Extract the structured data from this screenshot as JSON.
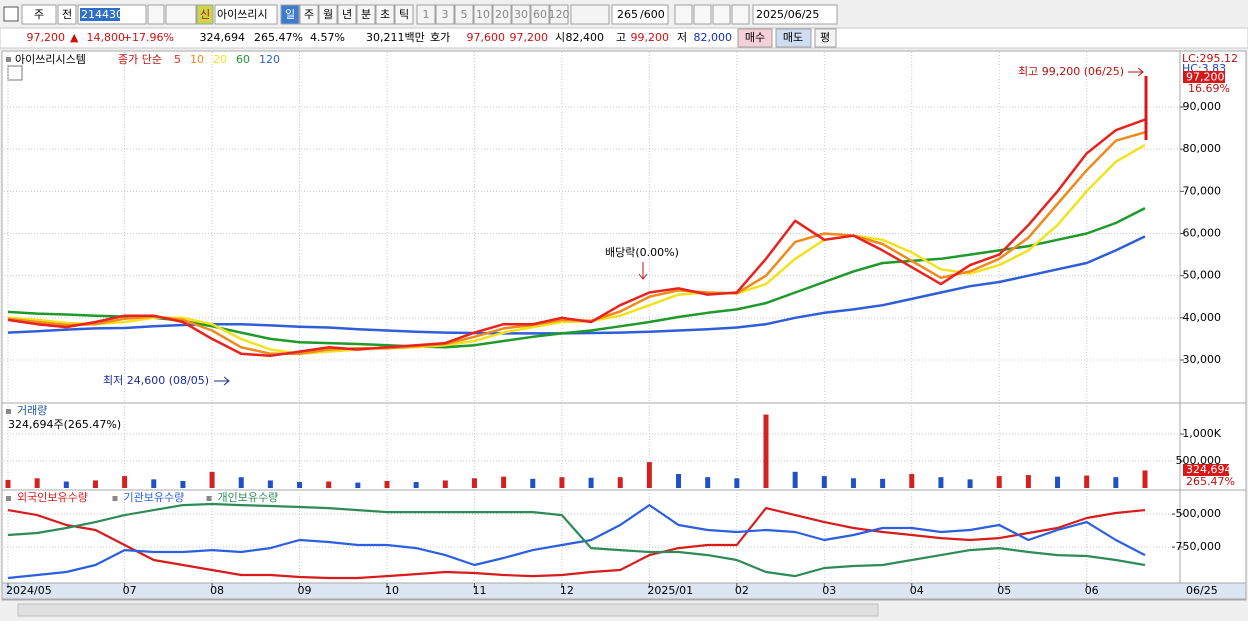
{
  "toolbar": {
    "market": "주",
    "prev": "전",
    "code": "214430",
    "new_badge": "신",
    "name": "아이쓰리시",
    "periods": [
      "일",
      "주",
      "월",
      "년",
      "분",
      "초",
      "틱"
    ],
    "intervals": [
      "1",
      "3",
      "5",
      "10",
      "20",
      "30",
      "60",
      "120"
    ],
    "count": "265",
    "count_max": "/600",
    "date": "2025/06/25"
  },
  "info_bar": {
    "price": "97,200",
    "arrow": "▲",
    "change": "14,800",
    "change_rate": "+17.96%",
    "volume": "324,694",
    "volume_rate": "265.47%",
    "turnover": "4.57%",
    "amount": "30,211백만",
    "quote_label": "호가",
    "ask": "97,600",
    "bid": "97,200",
    "open_label": "시",
    "open": "82,400",
    "high_label": "고",
    "high": "99,200",
    "low_label": "저",
    "low": "82,000",
    "buy": "매수",
    "sell": "매도",
    "eval": "평"
  },
  "chart_data": [
    {
      "type": "line",
      "title": "아이쓰리시스템",
      "legend_title": "종가 단순",
      "lc_label": "LC:295.12",
      "hc_label": "HC:3.83",
      "current_price_label": "97,200",
      "current_rate_label": "16.69%",
      "annotations": [
        "최고 99,200 (06/25)",
        "배당락(0.00%)",
        "최저 24,600 (08/05)"
      ],
      "x_end_label": "06/25",
      "categories": [
        "2024/05",
        null,
        null,
        null,
        "07",
        null,
        null,
        "08",
        null,
        null,
        "09",
        null,
        null,
        "10",
        null,
        null,
        "11",
        null,
        null,
        "12",
        null,
        null,
        "2025/01",
        null,
        null,
        "02",
        null,
        null,
        "03",
        null,
        null,
        "04",
        null,
        null,
        "05",
        null,
        null,
        "06",
        null,
        null
      ],
      "ylim": [
        20040,
        103040
      ],
      "yticks": [
        {
          "value": 30000,
          "label": "30,000"
        },
        {
          "value": 40000,
          "label": "40,000"
        },
        {
          "value": 50000,
          "label": "50,000"
        },
        {
          "value": 60000,
          "label": "60,000"
        },
        {
          "value": 70000,
          "label": "70,000"
        },
        {
          "value": 80000,
          "label": "80,000"
        },
        {
          "value": 90000,
          "label": "90,000"
        }
      ],
      "grid": true,
      "series": [
        {
          "name": "120",
          "color": "#2e5ed8",
          "values": [
            36500,
            36800,
            37200,
            37500,
            37600,
            38000,
            38300,
            38500,
            38500,
            38200,
            37900,
            37700,
            37300,
            37000,
            36700,
            36500,
            36400,
            36300,
            36300,
            36300,
            36400,
            36500,
            36700,
            37000,
            37300,
            37700,
            38500,
            40000,
            41200,
            42000,
            43000,
            44500,
            46000,
            47500,
            48500,
            50000,
            51500,
            53000,
            56000,
            59300
          ]
        },
        {
          "name": "60",
          "color": "#1f9a2a",
          "values": [
            41400,
            41000,
            40800,
            40500,
            40300,
            40000,
            39300,
            38000,
            36500,
            35000,
            34200,
            34000,
            33800,
            33500,
            33200,
            33000,
            33500,
            34500,
            35500,
            36300,
            37000,
            38000,
            39000,
            40200,
            41200,
            42000,
            43500,
            46000,
            48500,
            51000,
            53000,
            53500,
            54000,
            55000,
            56000,
            57000,
            58500,
            60000,
            62500,
            66000
          ]
        },
        {
          "name": "20",
          "color": "#f2e21e",
          "values": [
            40000,
            39500,
            38800,
            38500,
            39000,
            40000,
            40000,
            38500,
            35000,
            32500,
            31500,
            32000,
            32500,
            32800,
            33000,
            33500,
            34500,
            36500,
            37800,
            39000,
            39200,
            40500,
            43000,
            45500,
            46000,
            45800,
            48000,
            54000,
            58500,
            59500,
            58500,
            55500,
            51500,
            50500,
            52500,
            56000,
            62000,
            70000,
            77000,
            81000
          ]
        },
        {
          "name": "10",
          "color": "#f08a1c",
          "values": [
            39800,
            39000,
            38300,
            38500,
            39800,
            40300,
            39500,
            37000,
            33000,
            31500,
            31500,
            32500,
            32800,
            32800,
            33300,
            33800,
            35500,
            37500,
            38300,
            39500,
            39300,
            41500,
            45000,
            46500,
            46000,
            45800,
            50000,
            58000,
            60000,
            59500,
            57500,
            53500,
            49500,
            51000,
            54000,
            59000,
            67000,
            75000,
            82000,
            84000
          ]
        },
        {
          "name": "5",
          "color": "#e8221e",
          "values": [
            39500,
            38500,
            37800,
            39000,
            40500,
            40500,
            39000,
            35000,
            31500,
            31000,
            32000,
            33000,
            32500,
            33000,
            33500,
            34000,
            36500,
            38500,
            38500,
            40000,
            39000,
            43000,
            46000,
            47000,
            45500,
            46000,
            54000,
            63000,
            58500,
            59500,
            56000,
            52000,
            48000,
            52500,
            55000,
            62000,
            70000,
            79000,
            84500,
            87000
          ]
        }
      ]
    },
    {
      "type": "bar",
      "title": "거래량",
      "subtitle": "324,694주(265.47%)",
      "last_label": "324,694",
      "rate_label": "265.47%",
      "up_color": "#d42020",
      "down_color": "#2050c8",
      "ylim": [
        0,
        1537000
      ],
      "yticks": [
        {
          "value": 500000,
          "label": "500,000"
        },
        {
          "value": 1000000,
          "label": "1,000K"
        }
      ],
      "values": [
        150000,
        180000,
        120000,
        140000,
        220000,
        160000,
        130000,
        300000,
        200000,
        140000,
        110000,
        120000,
        100000,
        130000,
        110000,
        140000,
        180000,
        210000,
        170000,
        200000,
        190000,
        200000,
        480000,
        260000,
        200000,
        180000,
        1360000,
        300000,
        220000,
        180000,
        170000,
        260000,
        200000,
        160000,
        220000,
        240000,
        210000,
        230000,
        200000,
        324694
      ]
    },
    {
      "type": "line",
      "ylim": [
        -1015000,
        -333000
      ],
      "yticks": [
        {
          "value": -750000,
          "label": "-750,000"
        },
        {
          "value": -500000,
          "label": "-500,000"
        }
      ],
      "series": [
        {
          "name": "외국인보유수량",
          "color": "#d81c1c",
          "values": [
            -470000,
            -508000,
            -583000,
            -621000,
            -735000,
            -848000,
            -886000,
            -924000,
            -962000,
            -962000,
            -977000,
            -985000,
            -985000,
            -970000,
            -955000,
            -939000,
            -947000,
            -962000,
            -970000,
            -962000,
            -939000,
            -924000,
            -811000,
            -758000,
            -735000,
            -735000,
            -455000,
            -508000,
            -561000,
            -606000,
            -636000,
            -659000,
            -682000,
            -697000,
            -682000,
            -644000,
            -606000,
            -530000,
            -492000,
            -470000
          ]
        },
        {
          "name": "기관보유수량",
          "color": "#2c5fe0",
          "values": [
            -985000,
            -962000,
            -939000,
            -886000,
            -773000,
            -788000,
            -788000,
            -773000,
            -788000,
            -758000,
            -697000,
            -712000,
            -735000,
            -735000,
            -758000,
            -811000,
            -886000,
            -833000,
            -773000,
            -735000,
            -697000,
            -583000,
            -432000,
            -583000,
            -621000,
            -636000,
            -621000,
            -636000,
            -697000,
            -659000,
            -606000,
            -606000,
            -636000,
            -621000,
            -583000,
            -697000,
            -621000,
            -561000,
            -697000,
            -811000
          ]
        },
        {
          "name": "개인보유수량",
          "color": "#2e8b57",
          "values": [
            -659000,
            -644000,
            -606000,
            -561000,
            -508000,
            -470000,
            -432000,
            -424000,
            -432000,
            -439000,
            -447000,
            -455000,
            -470000,
            -485000,
            -485000,
            -485000,
            -485000,
            -485000,
            -485000,
            -508000,
            -758000,
            -773000,
            -788000,
            -788000,
            -811000,
            -848000,
            -939000,
            -970000,
            -909000,
            -894000,
            -886000,
            -848000,
            -811000,
            -773000,
            -758000,
            -788000,
            -811000,
            -818000,
            -848000,
            -886000
          ]
        }
      ]
    }
  ]
}
